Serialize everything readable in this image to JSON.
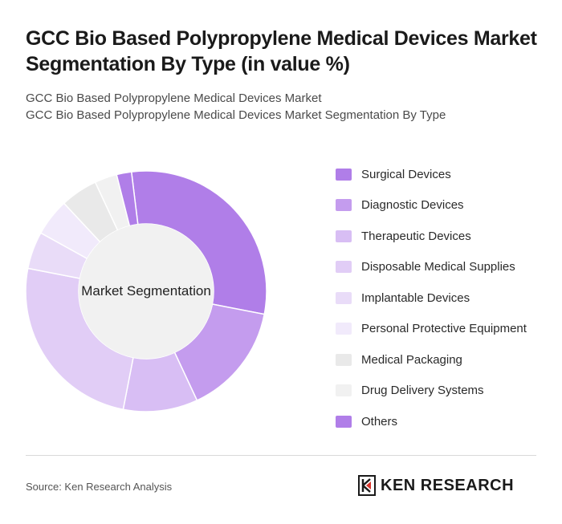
{
  "header": {
    "title": "GCC Bio Based Polypropylene Medical Devices Market Segmentation By Type (in value %)",
    "subtitle_line1": "GCC Bio Based Polypropylene Medical Devices Market",
    "subtitle_line2": "GCC Bio Based Polypropylene Medical Devices Market Segmentation By Type"
  },
  "chart_data": {
    "type": "pie",
    "center_label": "Market Segmentation",
    "categories": [
      "Surgical Devices",
      "Diagnostic Devices",
      "Therapeutic Devices",
      "Disposable Medical Supplies",
      "Implantable Devices",
      "Personal Protective Equipment",
      "Medical Packaging",
      "Drug Delivery Systems",
      "Others"
    ],
    "values": [
      30,
      15,
      10,
      25,
      5,
      5,
      5,
      3,
      2
    ],
    "colors": [
      "#b07ee8",
      "#c49cee",
      "#d8bef4",
      "#e1cdf6",
      "#e9dcf8",
      "#f1eafb",
      "#e9e9e9",
      "#f1f1f1",
      "#b07ee8"
    ],
    "legend_position": "right"
  },
  "footer": {
    "source": "Source: Ken Research Analysis",
    "logo_text": "KEN RESEARCH"
  }
}
